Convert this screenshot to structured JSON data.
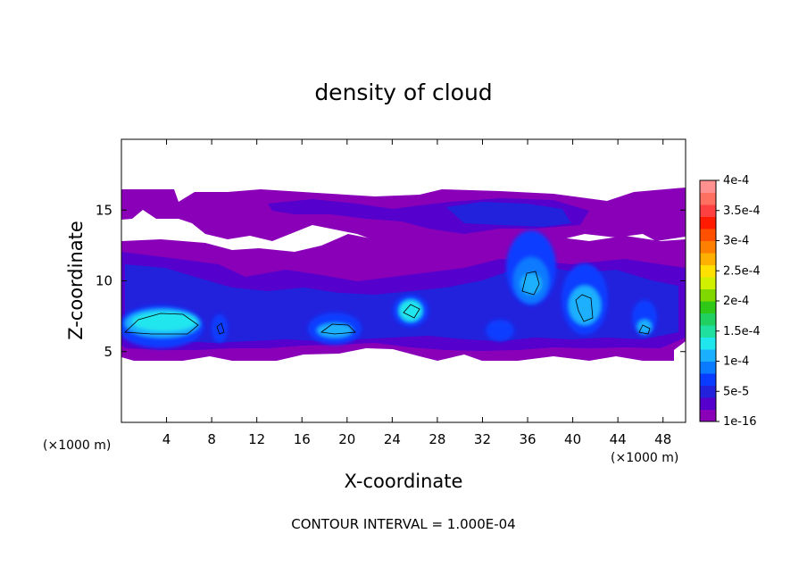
{
  "chart_data": {
    "type": "heatmap",
    "title": "density of cloud",
    "xlabel": "X-coordinate",
    "ylabel": "Z-coordinate",
    "x_unit": "(×1000 m)",
    "z_unit": "(×1000 m)",
    "xlim": [
      0,
      50
    ],
    "ylim": [
      0,
      20
    ],
    "x_ticks": [
      "4",
      "8",
      "12",
      "16",
      "20",
      "24",
      "28",
      "32",
      "36",
      "40",
      "44",
      "48"
    ],
    "y_ticks": [
      "5",
      "10",
      "15"
    ],
    "colorbar": {
      "levels": [
        "1e-16",
        "5e-5",
        "1e-4",
        "1.5e-4",
        "2e-4",
        "2.5e-4",
        "3e-4",
        "3.5e-4",
        "4e-4"
      ],
      "colors": [
        "#8a00b8",
        "#5500cc",
        "#2222dd",
        "#0a3cff",
        "#0a7aff",
        "#1ab0ff",
        "#20e6ee",
        "#20e0a0",
        "#20d060",
        "#30c818",
        "#80d800",
        "#d0f000",
        "#ffe000",
        "#ffb000",
        "#ff8000",
        "#ff5000",
        "#ff1a00",
        "#ff4040",
        "#ff7060",
        "#ff9090"
      ]
    },
    "contour_interval": "CONTOUR INTERVAL = 1.000E-04"
  }
}
